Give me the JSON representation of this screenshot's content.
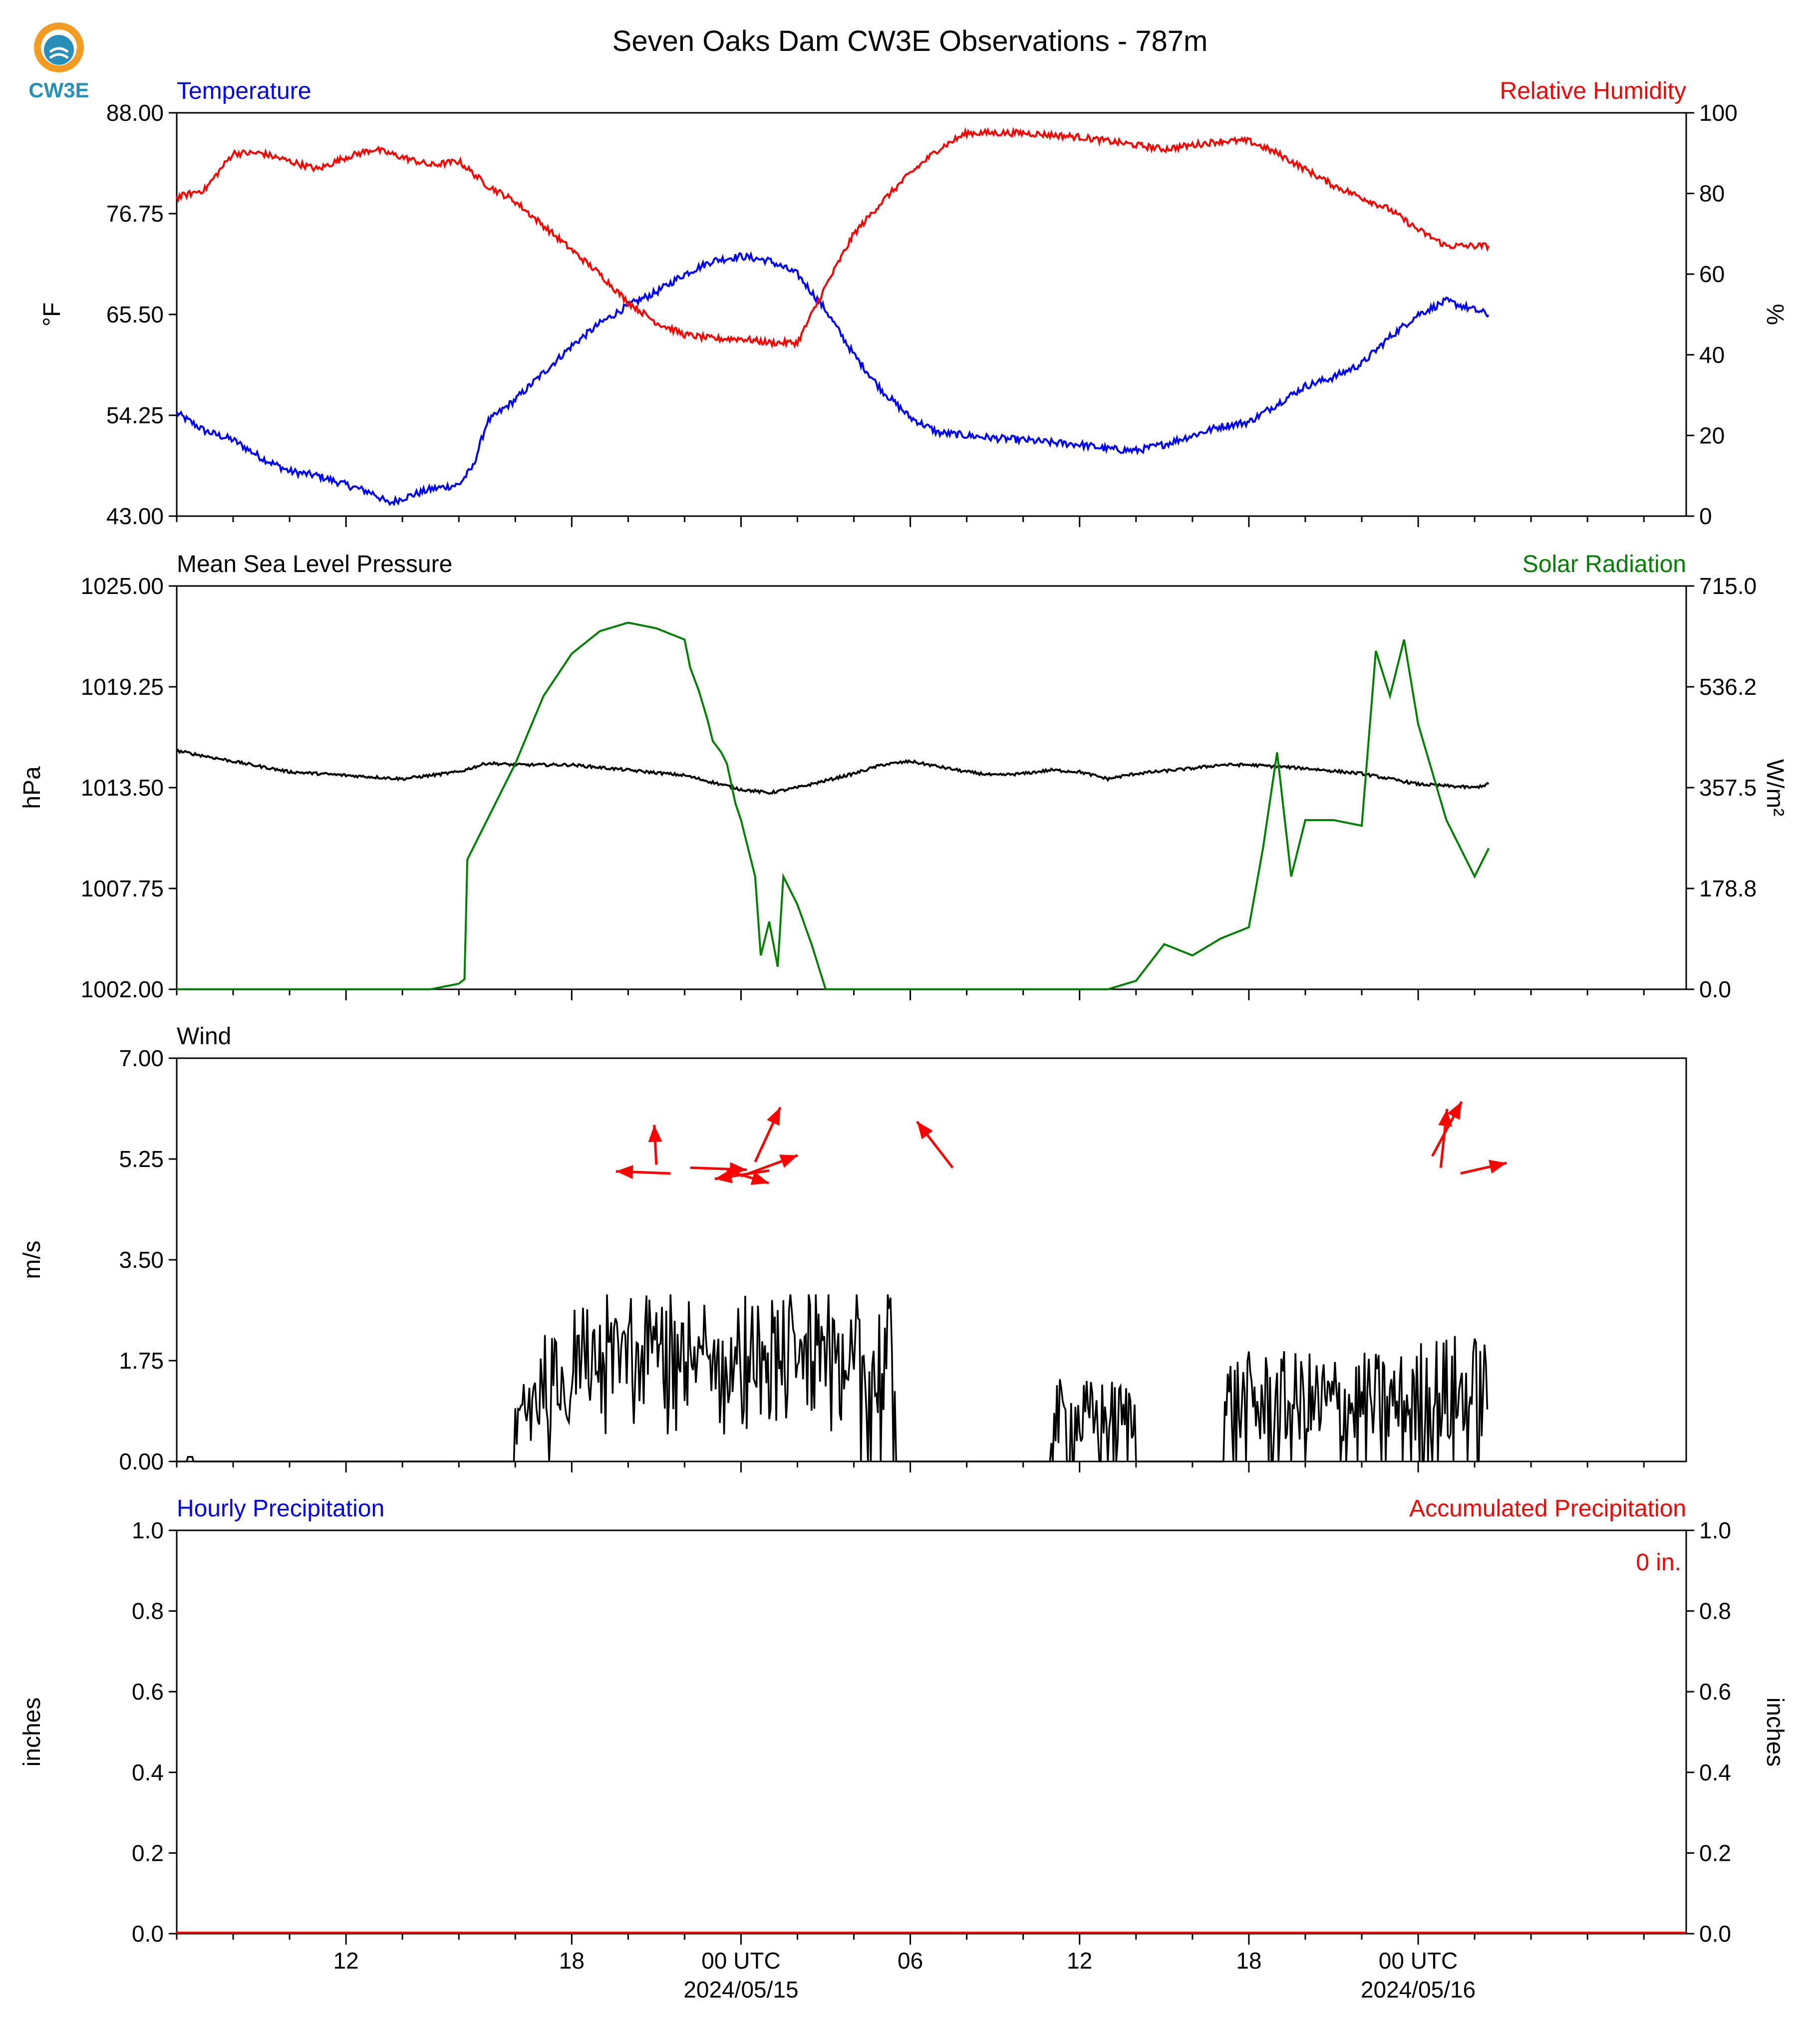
{
  "title": "Seven Oaks Dam CW3E Observations - 787m",
  "logo_text": "CW3E",
  "colors": {
    "temp": "#0000ff",
    "rh": "#ff0000",
    "pressure": "#000000",
    "solar": "#008000",
    "wind": "#000000",
    "arrows": "#ff0000",
    "hourly": "#0000ff",
    "accum": "#ff0000"
  },
  "x_axis": {
    "range_hours": [
      -20.0,
      33.5
    ],
    "ticks": [
      {
        "h": -14,
        "label": "12"
      },
      {
        "h": -6,
        "label": "18"
      },
      {
        "h": 0,
        "label": "00 UTC",
        "sub": "2024/05/15"
      },
      {
        "h": 6,
        "label": "06"
      },
      {
        "h": 12,
        "label": "12"
      },
      {
        "h": 18,
        "label": "18"
      },
      {
        "h": 24,
        "label": "00 UTC",
        "sub": "2024/05/16"
      }
    ],
    "minor_every_hours": 2
  },
  "chart_data": [
    {
      "type": "line",
      "left_title": "Temperature",
      "right_title": "Relative Humidity",
      "ylabel_left": "°F",
      "ylabel_right": "%",
      "ylim_left": [
        43,
        88
      ],
      "ylim_right": [
        0,
        100
      ],
      "yticks_left": [
        "43.00",
        "54.25",
        "65.50",
        "76.75",
        "88.00"
      ],
      "yticks_right": [
        "0",
        "20",
        "40",
        "60",
        "80",
        "100"
      ],
      "series": [
        {
          "axis": "left",
          "color": "temp",
          "noise": 0.4,
          "points": [
            [
              -20,
              54.5
            ],
            [
              -19,
              52.5
            ],
            [
              -18,
              51.5
            ],
            [
              -17,
              49.5
            ],
            [
              -16,
              48
            ],
            [
              -15,
              47.5
            ],
            [
              -14,
              46.5
            ],
            [
              -13,
              45.5
            ],
            [
              -12.5,
              44.4
            ],
            [
              -12,
              45
            ],
            [
              -11,
              46
            ],
            [
              -10,
              46.5
            ],
            [
              -9.5,
              48.5
            ],
            [
              -9,
              53.5
            ],
            [
              -8,
              56
            ],
            [
              -7,
              59
            ],
            [
              -6,
              62
            ],
            [
              -5,
              64.5
            ],
            [
              -4,
              66.5
            ],
            [
              -3,
              68
            ],
            [
              -2,
              70
            ],
            [
              -1,
              71.5
            ],
            [
              0,
              72
            ],
            [
              1,
              71.5
            ],
            [
              2,
              70
            ],
            [
              3,
              66
            ],
            [
              4,
              61
            ],
            [
              5,
              57
            ],
            [
              6,
              54
            ],
            [
              7,
              52.3
            ],
            [
              8,
              52
            ],
            [
              9,
              51.7
            ],
            [
              10,
              51.5
            ],
            [
              11,
              51.2
            ],
            [
              12,
              51
            ],
            [
              13,
              50.5
            ],
            [
              14,
              50.3
            ],
            [
              15,
              51
            ],
            [
              16,
              52
            ],
            [
              17,
              53
            ],
            [
              18,
              53.5
            ],
            [
              19,
              55.5
            ],
            [
              20,
              57.5
            ],
            [
              21,
              58.5
            ],
            [
              22,
              60
            ],
            [
              23,
              63
            ],
            [
              24,
              65.5
            ],
            [
              25,
              67
            ],
            [
              26,
              66
            ],
            [
              26.5,
              65.5
            ]
          ]
        },
        {
          "axis": "right",
          "color": "rh",
          "noise": 0.8,
          "points": [
            [
              -20,
              79
            ],
            [
              -19,
              81
            ],
            [
              -18,
              90
            ],
            [
              -17,
              90
            ],
            [
              -16,
              88
            ],
            [
              -15,
              86
            ],
            [
              -14,
              89
            ],
            [
              -13,
              91
            ],
            [
              -12,
              89
            ],
            [
              -11,
              87
            ],
            [
              -10,
              88
            ],
            [
              -9,
              82
            ],
            [
              -8,
              78
            ],
            [
              -7,
              72
            ],
            [
              -6,
              66
            ],
            [
              -5,
              60
            ],
            [
              -4,
              53
            ],
            [
              -3,
              48
            ],
            [
              -2,
              45
            ],
            [
              -1,
              44
            ],
            [
              0,
              44
            ],
            [
              1,
              43
            ],
            [
              2,
              43
            ],
            [
              3,
              57
            ],
            [
              4,
              70
            ],
            [
              5,
              78
            ],
            [
              6,
              85
            ],
            [
              7,
              91
            ],
            [
              8,
              95
            ],
            [
              9,
              95
            ],
            [
              10,
              95
            ],
            [
              11,
              94.5
            ],
            [
              12,
              94
            ],
            [
              13,
              93
            ],
            [
              14,
              92
            ],
            [
              15,
              91
            ],
            [
              16,
              92
            ],
            [
              17,
              93
            ],
            [
              18,
              93
            ],
            [
              19,
              90
            ],
            [
              20,
              86
            ],
            [
              21,
              82
            ],
            [
              22,
              79
            ],
            [
              23,
              76
            ],
            [
              24,
              71
            ],
            [
              25,
              67
            ],
            [
              26,
              67
            ],
            [
              26.5,
              67
            ]
          ]
        }
      ]
    },
    {
      "type": "line",
      "left_title": "Mean Sea Level Pressure",
      "right_title": "Solar Radiation",
      "ylabel_left": "hPa",
      "ylabel_right": "W/m²",
      "ylim_left": [
        1002,
        1025
      ],
      "ylim_right": [
        0,
        715
      ],
      "yticks_left": [
        "1002.00",
        "1007.75",
        "1013.50",
        "1019.25",
        "1025.00"
      ],
      "yticks_right": [
        "0.0",
        "178.8",
        "357.5",
        "536.2",
        "715.0"
      ],
      "series": [
        {
          "axis": "left",
          "color": "pressure",
          "noise": 0.08,
          "points": [
            [
              -20,
              1015.6
            ],
            [
              -18,
              1015
            ],
            [
              -16,
              1014.4
            ],
            [
              -14,
              1014.2
            ],
            [
              -12,
              1014
            ],
            [
              -10,
              1014.4
            ],
            [
              -9,
              1014.9
            ],
            [
              -8,
              1014.8
            ],
            [
              -6,
              1014.8
            ],
            [
              -4,
              1014.5
            ],
            [
              -2,
              1014.2
            ],
            [
              0,
              1013.4
            ],
            [
              1,
              1013.2
            ],
            [
              2,
              1013.5
            ],
            [
              4,
              1014.3
            ],
            [
              5,
              1014.8
            ],
            [
              6,
              1015
            ],
            [
              7,
              1014.7
            ],
            [
              8,
              1014.4
            ],
            [
              9,
              1014.2
            ],
            [
              10,
              1014.3
            ],
            [
              11,
              1014.5
            ],
            [
              12,
              1014.4
            ],
            [
              13,
              1014
            ],
            [
              14,
              1014.3
            ],
            [
              16,
              1014.6
            ],
            [
              17,
              1014.8
            ],
            [
              18,
              1014.8
            ],
            [
              19,
              1014.7
            ],
            [
              20,
              1014.6
            ],
            [
              22,
              1014.3
            ],
            [
              24,
              1013.7
            ],
            [
              26,
              1013.5
            ],
            [
              26.5,
              1013.7
            ]
          ]
        },
        {
          "axis": "right",
          "color": "solar",
          "noise": 0,
          "points": [
            [
              -20,
              0
            ],
            [
              -11,
              0
            ],
            [
              -10,
              10
            ],
            [
              -9.8,
              18
            ],
            [
              -9.7,
              230
            ],
            [
              -9,
              300
            ],
            [
              -8,
              400
            ],
            [
              -7,
              520
            ],
            [
              -6,
              595
            ],
            [
              -5,
              635
            ],
            [
              -4,
              650
            ],
            [
              -3,
              640
            ],
            [
              -2,
              620
            ],
            [
              -1.8,
              570
            ],
            [
              -1.5,
              530
            ],
            [
              -1.2,
              480
            ],
            [
              -1,
              440
            ],
            [
              -0.7,
              420
            ],
            [
              -0.5,
              400
            ],
            [
              -0.2,
              330
            ],
            [
              0,
              300
            ],
            [
              0.5,
              200
            ],
            [
              0.7,
              60
            ],
            [
              1,
              120
            ],
            [
              1.3,
              40
            ],
            [
              1.5,
              200
            ],
            [
              2,
              150
            ],
            [
              2.5,
              80
            ],
            [
              3,
              0
            ],
            [
              12,
              0
            ],
            [
              13,
              0
            ],
            [
              14,
              15
            ],
            [
              15,
              80
            ],
            [
              16,
              60
            ],
            [
              17,
              90
            ],
            [
              18,
              110
            ],
            [
              18.5,
              250
            ],
            [
              19,
              420
            ],
            [
              19.5,
              200
            ],
            [
              20,
              300
            ],
            [
              21,
              300
            ],
            [
              22,
              290
            ],
            [
              22.5,
              600
            ],
            [
              23,
              520
            ],
            [
              23.5,
              620
            ],
            [
              24,
              470
            ],
            [
              25,
              300
            ],
            [
              26,
              200
            ],
            [
              26.5,
              250
            ]
          ]
        }
      ]
    },
    {
      "type": "bar",
      "left_title": "Wind",
      "ylabel_left": "m/s",
      "ylim_left": [
        0,
        7
      ],
      "yticks_left": [
        "0.00",
        "1.75",
        "3.50",
        "5.25",
        "7.00"
      ],
      "speed_note": "wind speed trace with activity windows",
      "speed_windows": [
        [
          -8,
          3.2,
          0.9
        ],
        [
          -7.5,
          3.5,
          1.4
        ],
        [
          -6,
          5.5,
          1.9
        ],
        [
          3,
          4,
          0.9
        ],
        [
          11,
          14,
          0.9
        ],
        [
          17,
          24,
          1.2
        ],
        [
          24,
          26.5,
          1.4
        ]
      ],
      "arrows": [
        {
          "h": -2.5,
          "s": 5.0,
          "u": -2.6,
          "v": 0.1
        },
        {
          "h": -3.0,
          "s": 5.15,
          "u": -0.1,
          "v": 1.9
        },
        {
          "h": -1.8,
          "s": 5.1,
          "u": 2.7,
          "v": -0.1
        },
        {
          "h": 1.0,
          "s": 5.05,
          "u": -2.6,
          "v": -0.4
        },
        {
          "h": -0.5,
          "s": 5.05,
          "u": 2.0,
          "v": -0.6
        },
        {
          "h": 0.0,
          "s": 4.95,
          "u": 2.7,
          "v": 1.0
        },
        {
          "h": 0.5,
          "s": 5.2,
          "u": 1.2,
          "v": 2.6
        },
        {
          "h": 7.5,
          "s": 5.1,
          "u": -1.7,
          "v": 2.2
        },
        {
          "h": 24.5,
          "s": 5.3,
          "u": 1.4,
          "v": 2.6
        },
        {
          "h": 24.8,
          "s": 5.1,
          "u": 0.3,
          "v": 2.8
        },
        {
          "h": 25.5,
          "s": 5.0,
          "u": 2.2,
          "v": 0.5
        }
      ]
    },
    {
      "type": "bar",
      "left_title": "Hourly Precipitation",
      "right_title": "Accumulated Precipitation",
      "ylabel_left": "inches",
      "ylabel_right": "inches",
      "ylim_left": [
        0,
        1
      ],
      "ylim_right": [
        0,
        1
      ],
      "yticks_left": [
        "0.0",
        "0.2",
        "0.4",
        "0.6",
        "0.8",
        "1.0"
      ],
      "yticks_right": [
        "0.0",
        "0.2",
        "0.4",
        "0.6",
        "0.8",
        "1.0"
      ],
      "accumulated_label": "0 in.",
      "values": []
    }
  ]
}
